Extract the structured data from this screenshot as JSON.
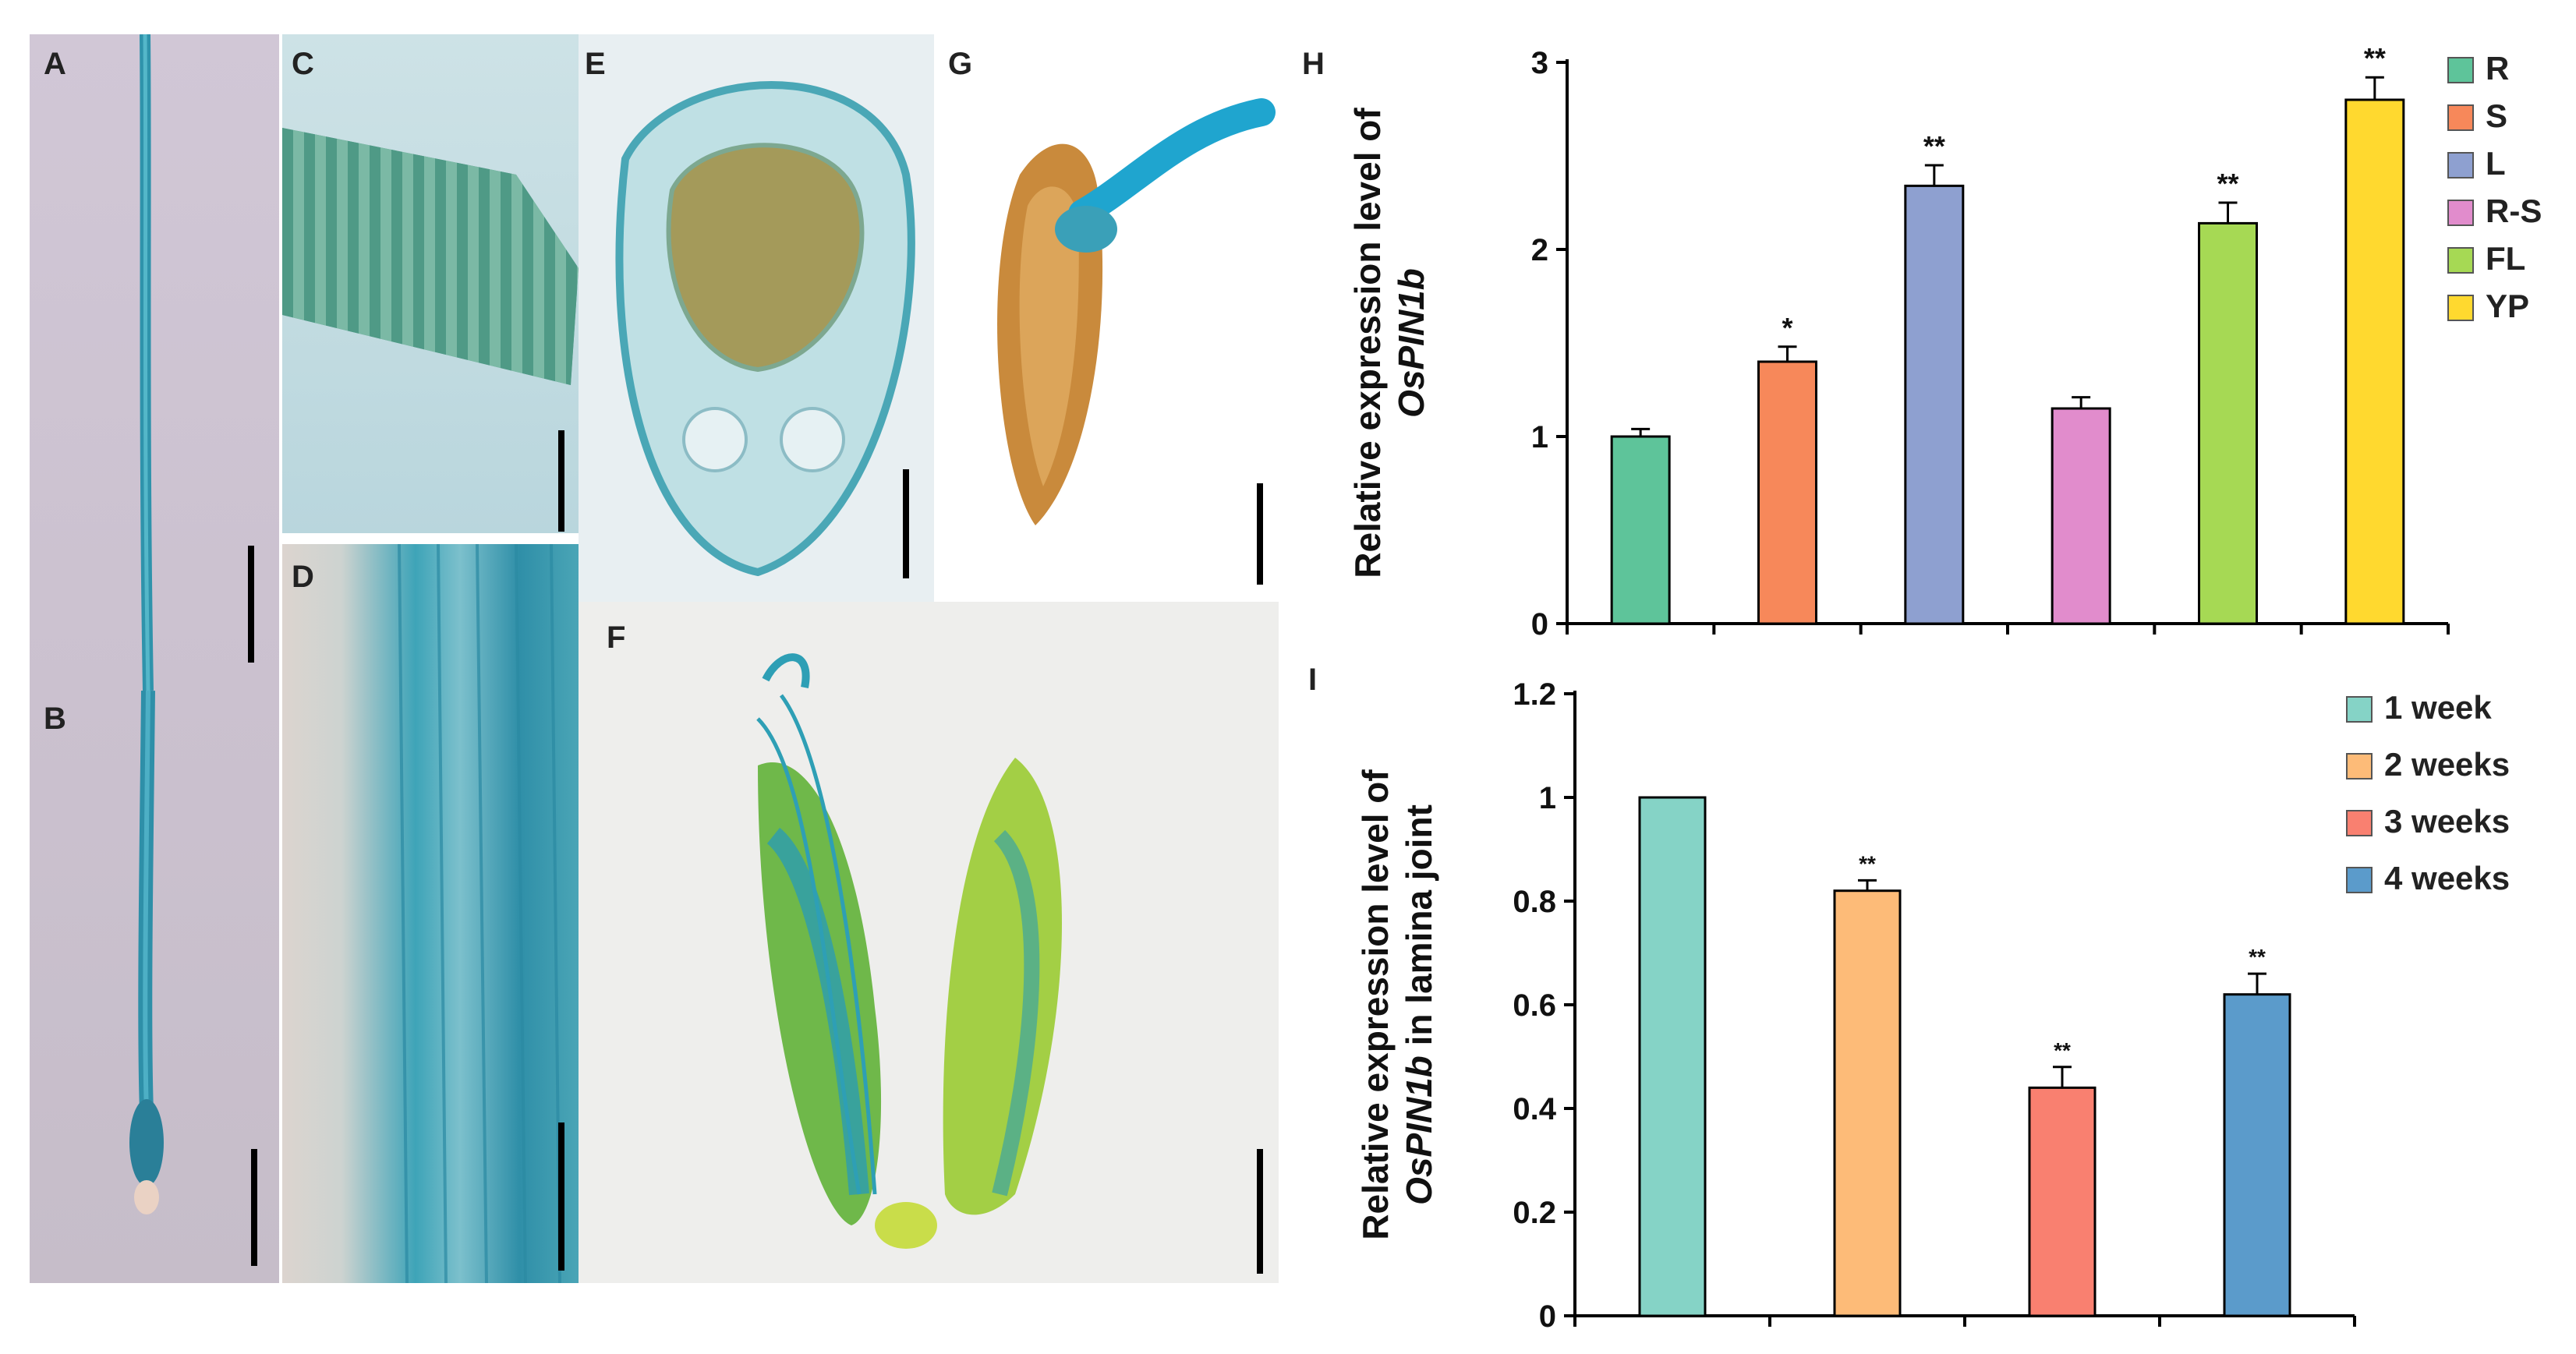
{
  "panels": {
    "A": "A",
    "B": "B",
    "C": "C",
    "D": "D",
    "E": "E",
    "F": "F",
    "G": "G",
    "H": "H",
    "I": "I"
  },
  "colors": {
    "gus_blue": "#2e9fb5",
    "background_photo": "#cfc6d2",
    "seed_brown": "#c98a3c",
    "leaf_green": "#8fbe3c"
  },
  "chart_data": [
    {
      "type": "bar",
      "panel": "H",
      "title": "",
      "ylabel_prefix": "Relative expression level of",
      "ylabel_gene": "OsPIN1b",
      "xlabel": "",
      "ylim": [
        0,
        3
      ],
      "yticks": [
        "0",
        "1",
        "2",
        "3"
      ],
      "categories": [
        "R",
        "S",
        "L",
        "R-S",
        "FL",
        "YP"
      ],
      "values": [
        1.0,
        1.4,
        2.34,
        1.15,
        2.14,
        2.8
      ],
      "errors": [
        0.04,
        0.08,
        0.11,
        0.06,
        0.11,
        0.12
      ],
      "significance": [
        "",
        "*",
        "**",
        "",
        "**",
        "**"
      ],
      "colors": [
        "#5ec49a",
        "#f7885a",
        "#8ea0d0",
        "#e18ccc",
        "#a6d954",
        "#ffd92f"
      ],
      "legend": [
        "R",
        "S",
        "L",
        "R-S",
        "FL",
        "YP"
      ],
      "legend_position": "right"
    },
    {
      "type": "bar",
      "panel": "I",
      "title": "",
      "ylabel_prefix": "Relative expression level of",
      "ylabel_gene": "OsPIN1b",
      "ylabel_suffix": "in lamina joint",
      "xlabel": "",
      "ylim": [
        0,
        1.2
      ],
      "yticks": [
        "0",
        "0.2",
        "0.4",
        "0.6",
        "0.8",
        "1",
        "1.2"
      ],
      "categories": [
        "1 week",
        "2 weeks",
        "3 weeks",
        "4 weeks"
      ],
      "values": [
        1.0,
        0.82,
        0.44,
        0.62
      ],
      "errors": [
        0.0,
        0.02,
        0.04,
        0.04
      ],
      "significance": [
        "",
        "**",
        "**",
        "**"
      ],
      "colors": [
        "#85d3c6",
        "#fdbb78",
        "#f98070",
        "#5b9bcb"
      ],
      "legend": [
        "1 week",
        "2 weeks",
        "3 weeks",
        "4 weeks"
      ],
      "legend_position": "top-right"
    }
  ]
}
